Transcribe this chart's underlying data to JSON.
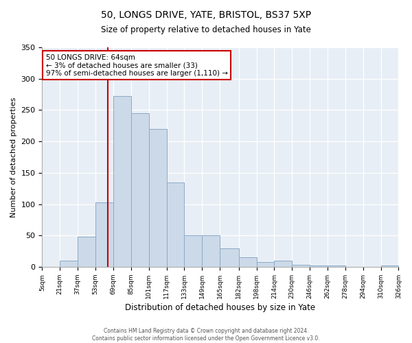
{
  "title": "50, LONGS DRIVE, YATE, BRISTOL, BS37 5XP",
  "subtitle": "Size of property relative to detached houses in Yate",
  "xlabel": "Distribution of detached houses by size in Yate",
  "ylabel": "Number of detached properties",
  "bar_color": "#ccd9e8",
  "bar_edgecolor": "#8aaac8",
  "vline_x": 64,
  "vline_color": "#cc0000",
  "annotation_line1": "50 LONGS DRIVE: 64sqm",
  "annotation_line2": "← 3% of detached houses are smaller (33)",
  "annotation_line3": "97% of semi-detached houses are larger (1,110) →",
  "bin_edges": [
    5,
    21,
    37,
    53,
    69,
    85,
    101,
    117,
    133,
    149,
    165,
    182,
    198,
    214,
    230,
    246,
    262,
    278,
    294,
    310,
    326
  ],
  "bin_counts": [
    0,
    10,
    48,
    103,
    272,
    245,
    220,
    135,
    50,
    50,
    30,
    15,
    8,
    10,
    3,
    2,
    2,
    0,
    0,
    2
  ],
  "ylim": [
    0,
    350
  ],
  "yticks": [
    0,
    50,
    100,
    150,
    200,
    250,
    300,
    350
  ],
  "footer_line1": "Contains HM Land Registry data © Crown copyright and database right 2024.",
  "footer_line2": "Contains public sector information licensed under the Open Government Licence v3.0.",
  "tick_labels": [
    "5sqm",
    "21sqm",
    "37sqm",
    "53sqm",
    "69sqm",
    "85sqm",
    "101sqm",
    "117sqm",
    "133sqm",
    "149sqm",
    "165sqm",
    "182sqm",
    "198sqm",
    "214sqm",
    "230sqm",
    "246sqm",
    "262sqm",
    "278sqm",
    "294sqm",
    "310sqm",
    "326sqm"
  ],
  "bg_color": "#e8eef5"
}
